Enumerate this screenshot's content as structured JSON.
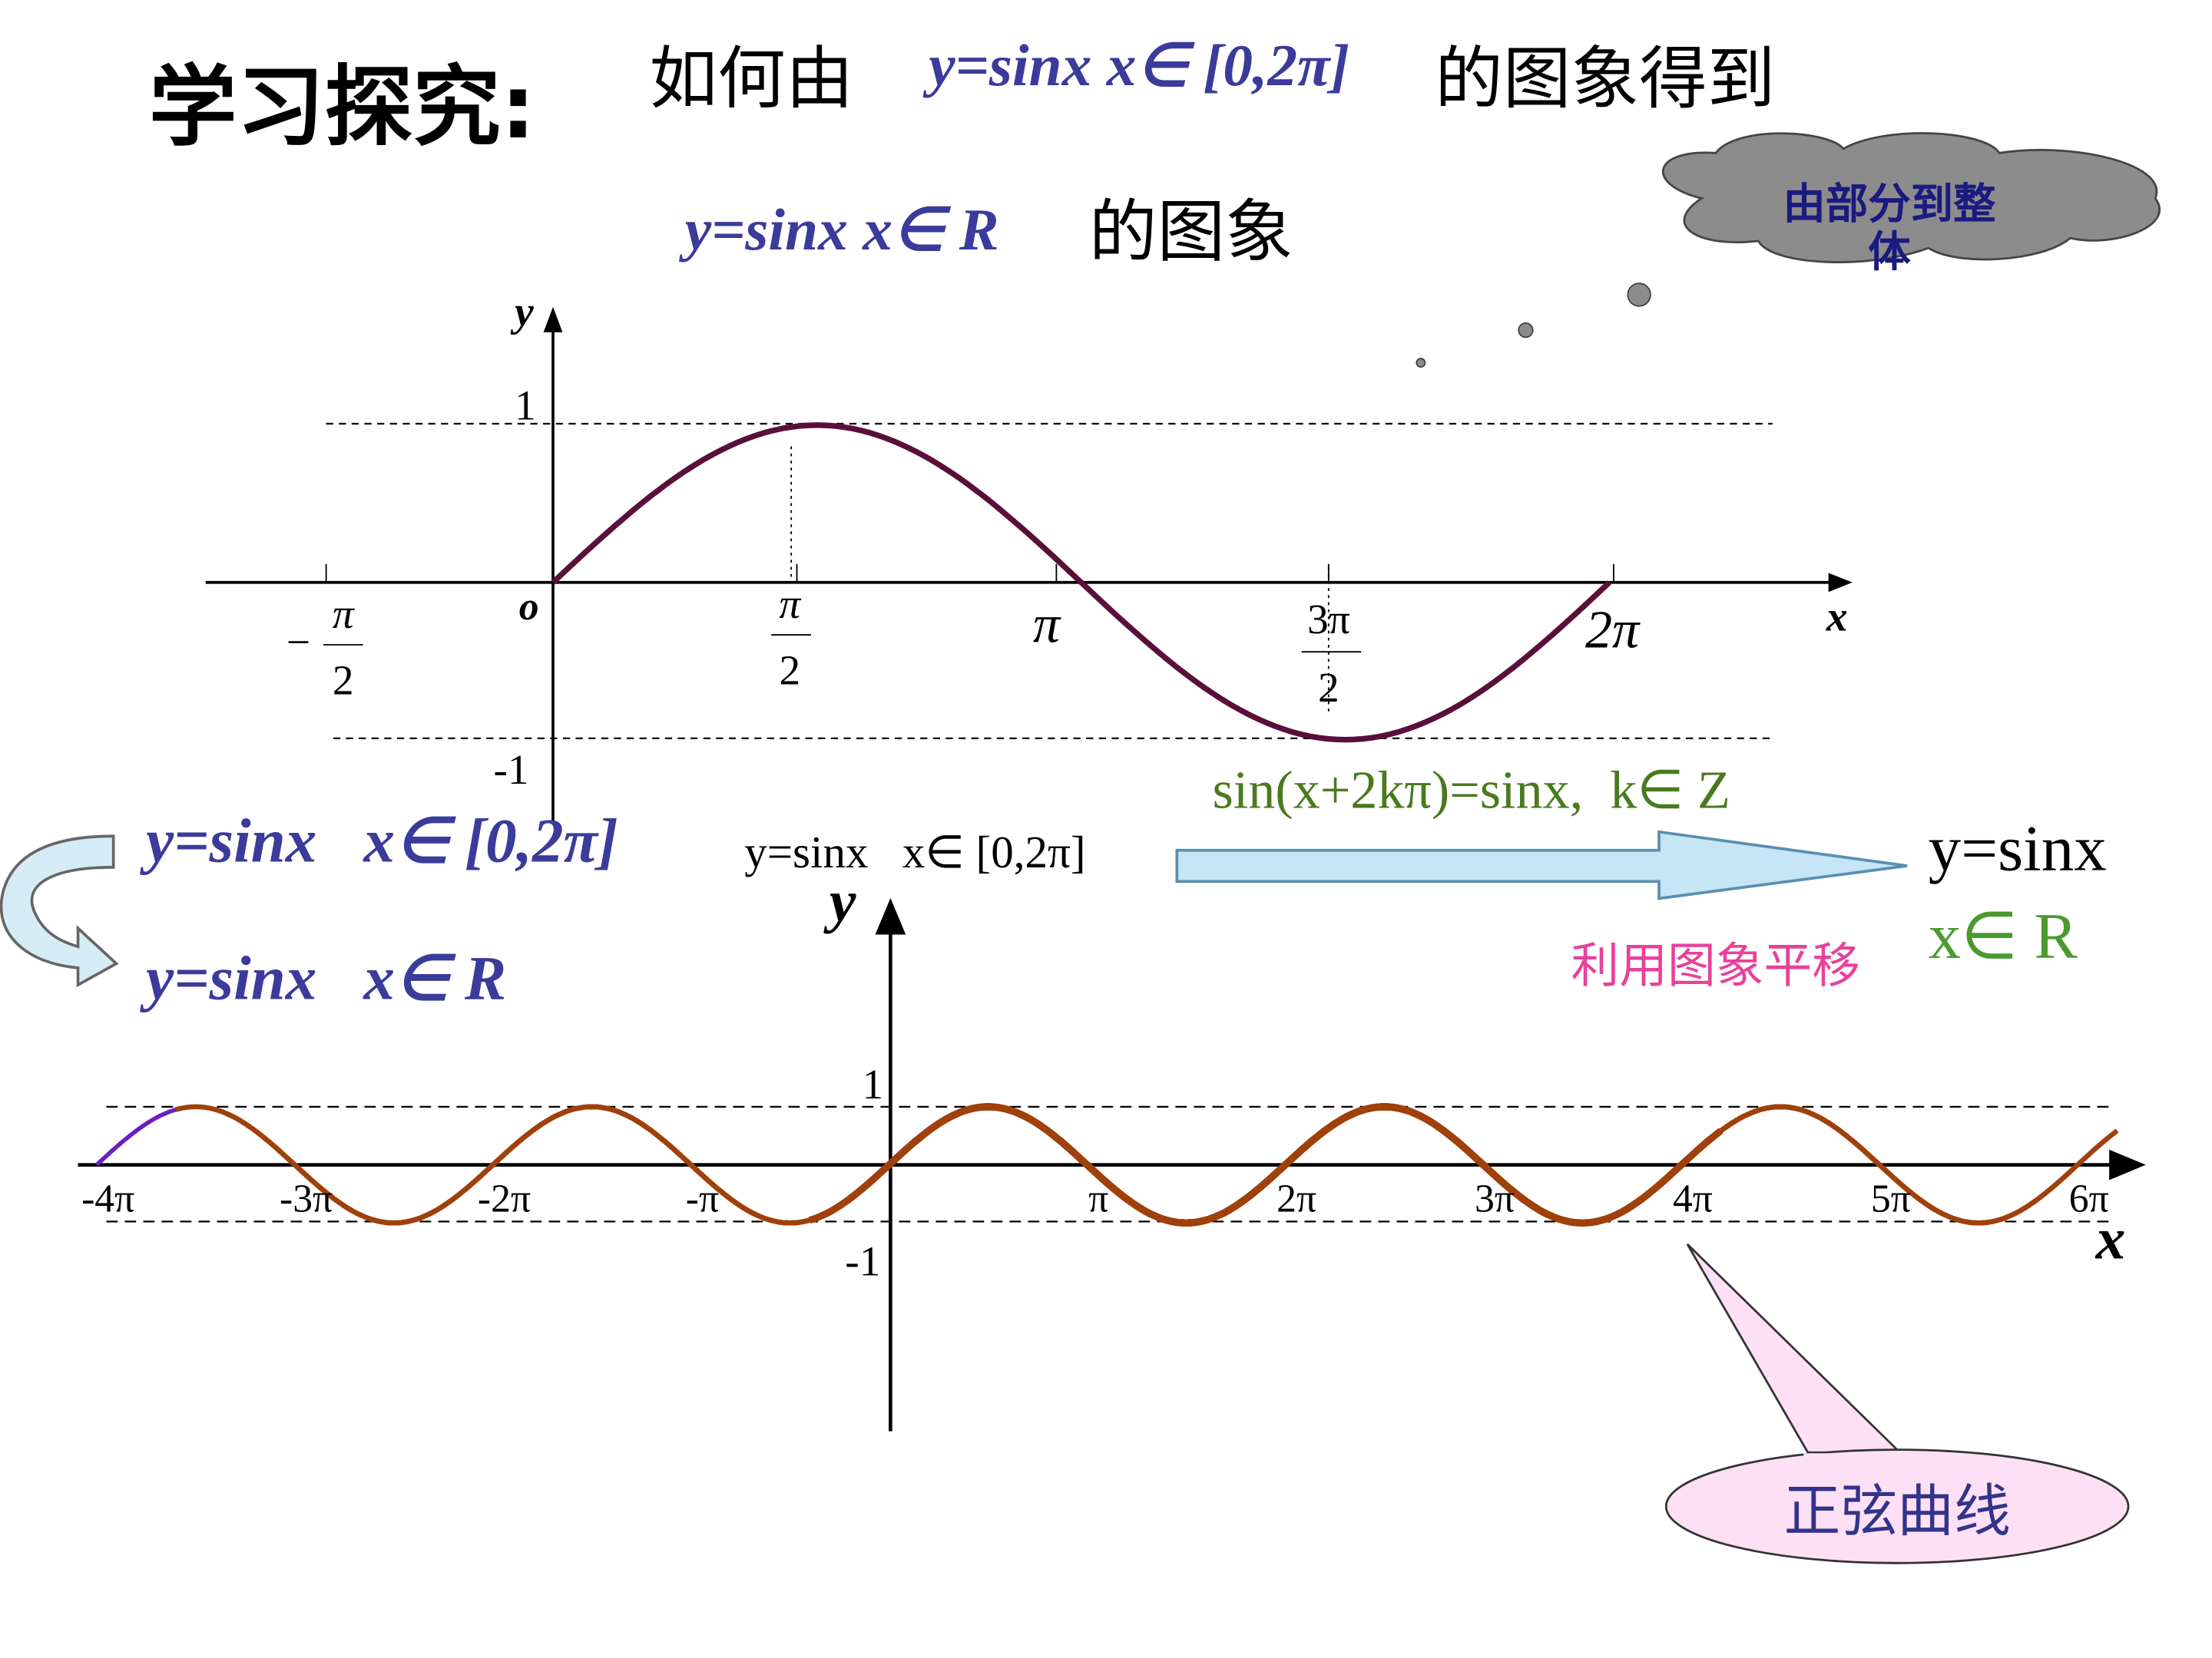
{
  "title": "学习探究:",
  "question": {
    "part1": "如何由",
    "from": "y=sinx x∈ [0,2π]",
    "part2": "的图象得到",
    "to": "y=sinx x∈ R",
    "part3": "的图象"
  },
  "thought_cloud": "由部分到整体",
  "upper_graph": {
    "y_label": "y",
    "x_label": "x",
    "origin": "o",
    "one": "1",
    "minus_one": "-1",
    "ticks": [
      {
        "sign": "−",
        "num": "π",
        "den": "2"
      },
      {
        "num": "π",
        "den": "2"
      },
      {
        "label": "π"
      },
      {
        "num": "3π",
        "den": "2"
      },
      {
        "label": "2π"
      }
    ]
  },
  "identity": "sin(x+2kπ)=sinx,  k∈ Z",
  "left_steps": [
    "y=sinx   x∈ [0,2π]",
    "y=sinx   x∈ R"
  ],
  "lower_graph": {
    "segment_label": "y=sinx   x∈ [0,2π]",
    "result_line1": "y=sinx",
    "result_line2": "x∈ R",
    "method": "利用图象平移",
    "y_label": "y",
    "x_label": "x",
    "one": "1",
    "minus_one": "-1",
    "ticks": [
      "-4π",
      "-3π",
      "-2π",
      "-π",
      "π",
      "2π",
      "3π",
      "4π",
      "5π",
      "6π"
    ]
  },
  "callout": "正弦曲线"
}
